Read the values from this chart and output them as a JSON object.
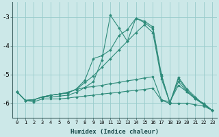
{
  "xlabel": "Humidex (Indice chaleur)",
  "background_color": "#cce8e8",
  "grid_color": "#99cccc",
  "line_color": "#2e8b7a",
  "x_values": [
    0,
    1,
    2,
    3,
    4,
    5,
    6,
    7,
    8,
    9,
    10,
    11,
    12,
    13,
    14,
    15,
    16,
    17,
    18,
    19,
    20,
    21,
    22,
    23
  ],
  "series": [
    [
      -5.6,
      -5.9,
      -5.95,
      -5.85,
      -5.85,
      -5.85,
      -5.82,
      -5.78,
      -5.75,
      -5.72,
      -5.68,
      -5.65,
      -5.62,
      -5.58,
      -5.55,
      -5.52,
      -5.48,
      -5.9,
      -6.0,
      -6.0,
      -6.0,
      -6.05,
      -6.1,
      -6.25
    ],
    [
      -5.6,
      -5.9,
      -5.88,
      -5.78,
      -5.78,
      -5.75,
      -5.72,
      -5.62,
      -5.45,
      -5.25,
      -4.5,
      -2.95,
      -3.38,
      -3.85,
      -3.05,
      -3.15,
      -3.35,
      -5.0,
      -6.0,
      -5.1,
      -5.5,
      -5.78,
      -6.05,
      -6.25
    ],
    [
      -5.6,
      -5.9,
      -5.88,
      -5.78,
      -5.72,
      -5.68,
      -5.65,
      -5.5,
      -5.2,
      -4.45,
      -4.35,
      -4.15,
      -3.65,
      -3.45,
      -3.05,
      -3.2,
      -3.42,
      -5.05,
      -5.98,
      -5.15,
      -5.55,
      -5.82,
      -6.05,
      -6.25
    ],
    [
      -5.6,
      -5.9,
      -5.88,
      -5.78,
      -5.72,
      -5.68,
      -5.62,
      -5.52,
      -5.28,
      -5.05,
      -4.75,
      -4.45,
      -4.15,
      -3.85,
      -3.55,
      -3.28,
      -3.55,
      -5.15,
      -5.98,
      -5.25,
      -5.6,
      -5.85,
      -6.05,
      -6.25
    ],
    [
      -5.6,
      -5.9,
      -5.88,
      -5.78,
      -5.72,
      -5.68,
      -5.62,
      -5.52,
      -5.45,
      -5.42,
      -5.38,
      -5.32,
      -5.28,
      -5.22,
      -5.18,
      -5.12,
      -5.08,
      -5.88,
      -5.95,
      -5.38,
      -5.6,
      -5.85,
      -6.0,
      -6.25
    ]
  ],
  "ylim": [
    -6.5,
    -2.5
  ],
  "yticks": [
    -6,
    -5,
    -4,
    -3
  ],
  "xlim": [
    -0.5,
    23.5
  ],
  "figsize": [
    3.2,
    2.0
  ],
  "dpi": 100
}
